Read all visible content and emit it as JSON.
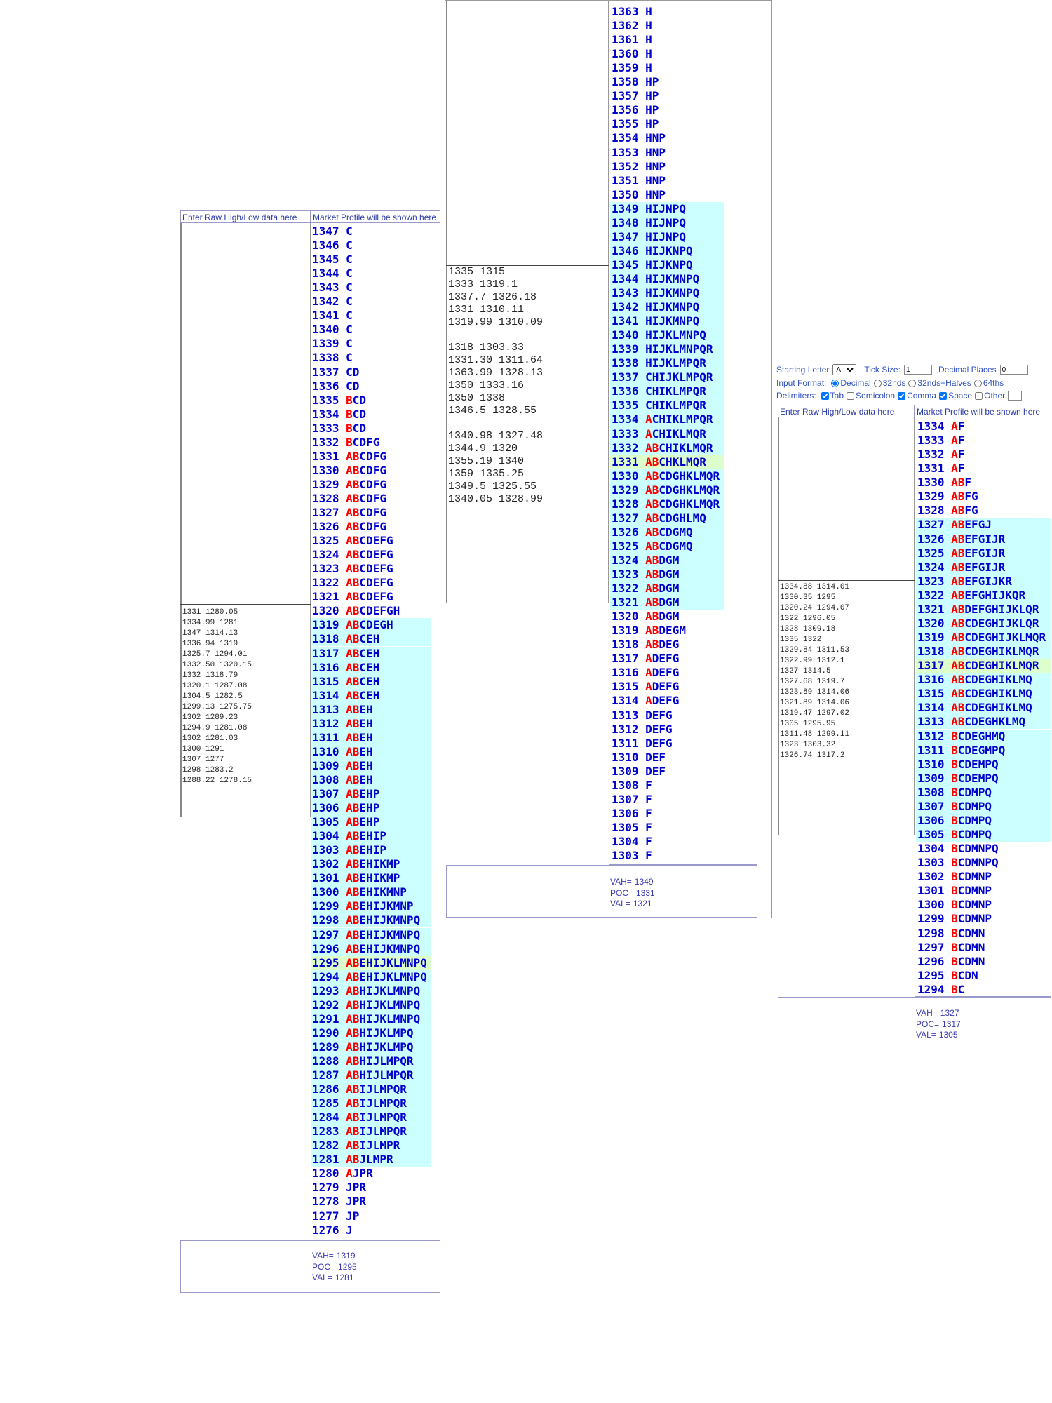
{
  "panels": [
    {
      "headers": {
        "raw": "Enter Raw High/Low data here",
        "profile": "Market Profile will be shown here"
      },
      "raw_data": [
        [
          "1331 1280.05",
          "1334.99 1281",
          "1347 1314.13",
          "1336.94 1319",
          "1325.7 1294.01",
          "1332.50 1320.15",
          "1332 1318.79",
          "1320.1 1287.08",
          "1304.5 1282.5",
          "1299.13 1275.75",
          "1302 1289.23",
          "1294.9 1281.08",
          "1302 1281.03",
          "1300 1291",
          "1307 1277",
          "1298 1283.2",
          "1288.22 1278.15"
        ]
      ],
      "rows": [
        [
          1347,
          "C"
        ],
        [
          1346,
          "C"
        ],
        [
          1345,
          "C"
        ],
        [
          1344,
          "C"
        ],
        [
          1343,
          "C"
        ],
        [
          1342,
          "C"
        ],
        [
          1341,
          "C"
        ],
        [
          1340,
          "C"
        ],
        [
          1339,
          "C"
        ],
        [
          1338,
          "C"
        ],
        [
          1337,
          "CD"
        ],
        [
          1336,
          "CD"
        ],
        [
          1335,
          "BCD"
        ],
        [
          1334,
          "BCD"
        ],
        [
          1333,
          "BCD"
        ],
        [
          1332,
          "BCDFG"
        ],
        [
          1331,
          "ABCDFG"
        ],
        [
          1330,
          "ABCDFG"
        ],
        [
          1329,
          "ABCDFG"
        ],
        [
          1328,
          "ABCDFG"
        ],
        [
          1327,
          "ABCDFG"
        ],
        [
          1326,
          "ABCDFG"
        ],
        [
          1325,
          "ABCDEFG"
        ],
        [
          1324,
          "ABCDEFG"
        ],
        [
          1323,
          "ABCDEFG"
        ],
        [
          1322,
          "ABCDEFG"
        ],
        [
          1321,
          "ABCDEFG"
        ],
        [
          1320,
          "ABCDEFGH"
        ],
        [
          1319,
          "ABCDEGH"
        ],
        [
          1318,
          "ABCEH"
        ],
        [
          1317,
          "ABCEH"
        ],
        [
          1316,
          "ABCEH"
        ],
        [
          1315,
          "ABCEH"
        ],
        [
          1314,
          "ABCEH"
        ],
        [
          1313,
          "ABEH"
        ],
        [
          1312,
          "ABEH"
        ],
        [
          1311,
          "ABEH"
        ],
        [
          1310,
          "ABEH"
        ],
        [
          1309,
          "ABEH"
        ],
        [
          1308,
          "ABEH"
        ],
        [
          1307,
          "ABEHP"
        ],
        [
          1306,
          "ABEHP"
        ],
        [
          1305,
          "ABEHP"
        ],
        [
          1304,
          "ABEHIP"
        ],
        [
          1303,
          "ABEHIP"
        ],
        [
          1302,
          "ABEHIKMP"
        ],
        [
          1301,
          "ABEHIKMP"
        ],
        [
          1300,
          "ABEHIKMNP"
        ],
        [
          1299,
          "ABEHIJKMNP"
        ],
        [
          1298,
          "ABEHIJKMNPQ"
        ],
        [
          1297,
          "ABEHIJKMNPQ"
        ],
        [
          1296,
          "ABEHIJKMNPQ"
        ],
        [
          1295,
          "ABEHIJKLMNPQ"
        ],
        [
          1294,
          "ABEHIJKLMNPQ"
        ],
        [
          1293,
          "ABHIJKLMNPQ"
        ],
        [
          1292,
          "ABHIJKLMNPQ"
        ],
        [
          1291,
          "ABHIJKLMNPQ"
        ],
        [
          1290,
          "ABHIJKLMPQ"
        ],
        [
          1289,
          "ABHIJKLMPQ"
        ],
        [
          1288,
          "ABHIJLMPQR"
        ],
        [
          1287,
          "ABHIJLMPQR"
        ],
        [
          1286,
          "ABIJLMPQR"
        ],
        [
          1285,
          "ABIJLMPQR"
        ],
        [
          1284,
          "ABIJLMPQR"
        ],
        [
          1283,
          "ABIJLMPQR"
        ],
        [
          1282,
          "ABIJLMPR"
        ],
        [
          1281,
          "ABJLMPR"
        ],
        [
          1280,
          "AJPR"
        ],
        [
          1279,
          "JPR"
        ],
        [
          1278,
          "JPR"
        ],
        [
          1277,
          "JP"
        ],
        [
          1276,
          "J"
        ]
      ],
      "summary": {
        "vah": {
          "label": "VAH=",
          "value": 1319
        },
        "poc": {
          "label": "POC=",
          "value": 1295
        },
        "val": {
          "label": "VAL=",
          "value": 1281
        }
      }
    },
    {
      "raw_data": [
        [
          "1335 1315",
          "1333 1319.1",
          "1337.7 1326.18",
          "1331 1310.11",
          "1319.99 1310.09"
        ],
        [
          "1318 1303.33",
          "1331.30 1311.64",
          "1363.99 1328.13",
          "1350 1333.16",
          "1350 1338",
          "1346.5 1328.55"
        ],
        [
          "1340.98 1327.48",
          "1344.9 1320",
          "1355.19 1340",
          "1359 1335.25",
          "1349.5 1325.55",
          "1340.05 1328.99"
        ]
      ],
      "rows": [
        [
          1363,
          "H"
        ],
        [
          1362,
          "H"
        ],
        [
          1361,
          "H"
        ],
        [
          1360,
          "H"
        ],
        [
          1359,
          "H"
        ],
        [
          1358,
          "HP"
        ],
        [
          1357,
          "HP"
        ],
        [
          1356,
          "HP"
        ],
        [
          1355,
          "HP"
        ],
        [
          1354,
          "HNP"
        ],
        [
          1353,
          "HNP"
        ],
        [
          1352,
          "HNP"
        ],
        [
          1351,
          "HNP"
        ],
        [
          1350,
          "HNP"
        ],
        [
          1349,
          "HIJNPQ"
        ],
        [
          1348,
          "HIJNPQ"
        ],
        [
          1347,
          "HIJNPQ"
        ],
        [
          1346,
          "HIJKNPQ"
        ],
        [
          1345,
          "HIJKNPQ"
        ],
        [
          1344,
          "HIJKMNPQ"
        ],
        [
          1343,
          "HIJKMNPQ"
        ],
        [
          1342,
          "HIJKMNPQ"
        ],
        [
          1341,
          "HIJKMNPQ"
        ],
        [
          1340,
          "HIJKLMNPQ"
        ],
        [
          1339,
          "HIJKLMNPQR"
        ],
        [
          1338,
          "HIJKLMPQR"
        ],
        [
          1337,
          "CHIJKLMPQR"
        ],
        [
          1336,
          "CHIKLMPQR"
        ],
        [
          1335,
          "CHIKLMPQR"
        ],
        [
          1334,
          "ACHIKLMPQR"
        ],
        [
          1333,
          "ACHIKLMQR"
        ],
        [
          1332,
          "ABCHIKLMQR"
        ],
        [
          1331,
          "ABCHKLMQR"
        ],
        [
          1330,
          "ABCDGHKLMQR"
        ],
        [
          1329,
          "ABCDGHKLMQR"
        ],
        [
          1328,
          "ABCDGHKLMQR"
        ],
        [
          1327,
          "ABCDGHLMQ"
        ],
        [
          1326,
          "ABCDGMQ"
        ],
        [
          1325,
          "ABCDGMQ"
        ],
        [
          1324,
          "ABDGM"
        ],
        [
          1323,
          "ABDGM"
        ],
        [
          1322,
          "ABDGM"
        ],
        [
          1321,
          "ABDGM"
        ],
        [
          1320,
          "ABDGM"
        ],
        [
          1319,
          "ABDEGM"
        ],
        [
          1318,
          "ABDEG"
        ],
        [
          1317,
          "ADEFG"
        ],
        [
          1316,
          "ADEFG"
        ],
        [
          1315,
          "ADEFG"
        ],
        [
          1314,
          "ADEFG"
        ],
        [
          1313,
          "DEFG"
        ],
        [
          1312,
          "DEFG"
        ],
        [
          1311,
          "DEFG"
        ],
        [
          1310,
          "DEF"
        ],
        [
          1309,
          "DEF"
        ],
        [
          1308,
          "F"
        ],
        [
          1307,
          "F"
        ],
        [
          1306,
          "F"
        ],
        [
          1305,
          "F"
        ],
        [
          1304,
          "F"
        ],
        [
          1303,
          "F"
        ]
      ],
      "summary": {
        "vah": {
          "label": "VAH=",
          "value": 1349
        },
        "poc": {
          "label": "POC=",
          "value": 1331
        },
        "val": {
          "label": "VAL=",
          "value": 1321
        }
      }
    },
    {
      "headers": {
        "raw": "Enter Raw High/Low data here",
        "profile": "Market Profile will be shown here"
      },
      "raw_data": [
        [
          "1334.88 1314.01",
          "1330.35 1295",
          "1320.24 1294.07",
          "1322 1296.05",
          "1328 1309.18",
          "1335 1322",
          "1329.84 1311.53",
          "1322.99 1312.1",
          "1327 1314.5",
          "1327.68 1319.7",
          "1323.89 1314.06",
          "1321.89 1314.06",
          "1319.47 1297.02",
          "1305 1295.95",
          "1311.48 1299.11",
          "1323 1303.32",
          "1326.74 1317.2"
        ]
      ],
      "rows": [
        [
          1334,
          "AF"
        ],
        [
          1333,
          "AF"
        ],
        [
          1332,
          "AF"
        ],
        [
          1331,
          "AF"
        ],
        [
          1330,
          "ABF"
        ],
        [
          1329,
          "ABFG"
        ],
        [
          1328,
          "ABFG"
        ],
        [
          1327,
          "ABEFGJ"
        ],
        [
          1326,
          "ABEFGIJR"
        ],
        [
          1325,
          "ABEFGIJR"
        ],
        [
          1324,
          "ABEFGIJR"
        ],
        [
          1323,
          "ABEFGIJKR"
        ],
        [
          1322,
          "ABEFGHIJKQR"
        ],
        [
          1321,
          "ABDEFGHIJKLQR"
        ],
        [
          1320,
          "ABCDEGHIJKLQR"
        ],
        [
          1319,
          "ABCDEGHIJKLMQR"
        ],
        [
          1318,
          "ABCDEGHIKLMQR"
        ],
        [
          1317,
          "ABCDEGHIKLMQR"
        ],
        [
          1316,
          "ABCDEGHIKLMQ"
        ],
        [
          1315,
          "ABCDEGHIKLMQ"
        ],
        [
          1314,
          "ABCDEGHIKLMQ"
        ],
        [
          1313,
          "ABCDEGHKLMQ"
        ],
        [
          1312,
          "BCDEGHMQ"
        ],
        [
          1311,
          "BCDEGMPQ"
        ],
        [
          1310,
          "BCDEMPQ"
        ],
        [
          1309,
          "BCDEMPQ"
        ],
        [
          1308,
          "BCDMPQ"
        ],
        [
          1307,
          "BCDMPQ"
        ],
        [
          1306,
          "BCDMPQ"
        ],
        [
          1305,
          "BCDMPQ"
        ],
        [
          1304,
          "BCDMNPQ"
        ],
        [
          1303,
          "BCDMNPQ"
        ],
        [
          1302,
          "BCDMNP"
        ],
        [
          1301,
          "BCDMNP"
        ],
        [
          1300,
          "BCDMNP"
        ],
        [
          1299,
          "BCDMNP"
        ],
        [
          1298,
          "BCDMN"
        ],
        [
          1297,
          "BCDMN"
        ],
        [
          1296,
          "BCDMN"
        ],
        [
          1295,
          "BCDN"
        ],
        [
          1294,
          "BC"
        ]
      ],
      "summary": {
        "vah": {
          "label": "VAH=",
          "value": 1327
        },
        "poc": {
          "label": "POC=",
          "value": 1317
        },
        "val": {
          "label": "VAL=",
          "value": 1305
        }
      }
    }
  ],
  "settings": {
    "starting_letter": {
      "label": "Starting Letter",
      "value": "A"
    },
    "tick_size": {
      "label": "Tick Size:",
      "value": 1
    },
    "decimal_places": {
      "label": "Decimal Places",
      "value": 0
    },
    "input_format": {
      "label": "Input Format:",
      "options": [
        {
          "label": "Decimal",
          "checked": true
        },
        {
          "label": "32nds",
          "checked": false
        },
        {
          "label": "32nds+Halves",
          "checked": false
        },
        {
          "label": "64ths",
          "checked": false
        }
      ]
    },
    "delimiters": {
      "label": "Delimiters:",
      "options": [
        {
          "label": "Tab",
          "checked": true
        },
        {
          "label": "Semicolon",
          "checked": false
        },
        {
          "label": "Comma",
          "checked": true
        },
        {
          "label": "Space",
          "checked": true
        },
        {
          "label": "Other",
          "checked": false
        }
      ]
    }
  }
}
